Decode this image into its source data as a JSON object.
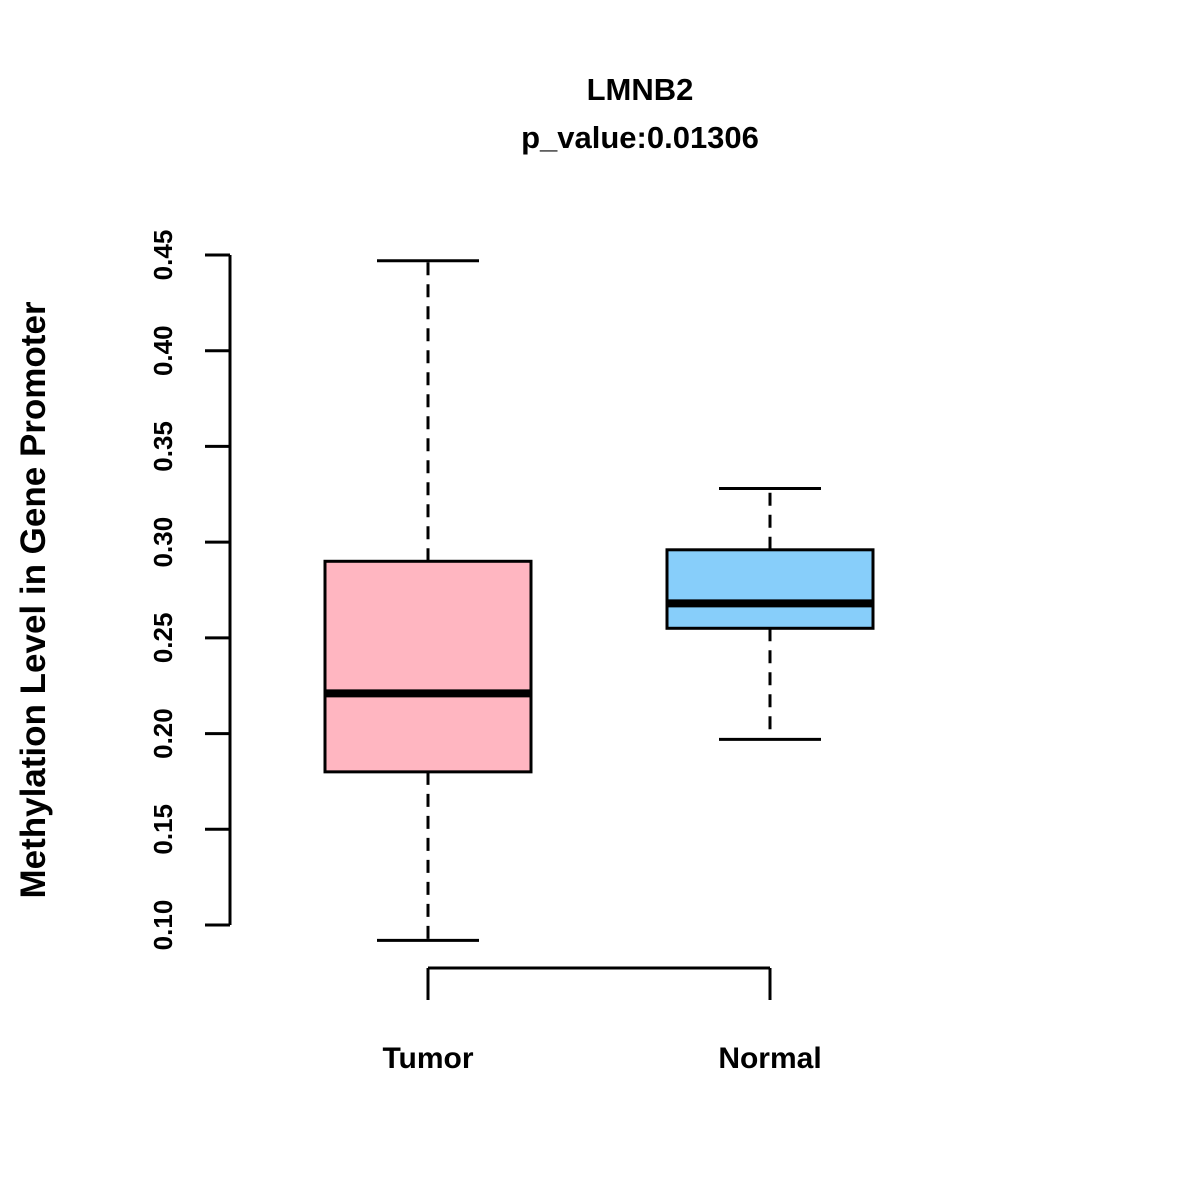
{
  "title": "LMNB2",
  "subtitle": "p_value:0.01306",
  "ylabel": "Methylation Level in Gene Promoter",
  "chart_data": {
    "type": "boxplot",
    "title": "LMNB2",
    "subtitle": "p_value:0.01306",
    "ylabel": "Methylation Level in Gene Promoter",
    "categories": [
      "Tumor",
      "Normal"
    ],
    "series": [
      {
        "name": "Tumor",
        "lower_whisker": 0.092,
        "q1": 0.18,
        "median": 0.221,
        "q3": 0.29,
        "upper_whisker": 0.447,
        "color": "#FFB6C1"
      },
      {
        "name": "Normal",
        "lower_whisker": 0.197,
        "q1": 0.255,
        "median": 0.268,
        "q3": 0.296,
        "upper_whisker": 0.328,
        "color": "#87CEFA"
      }
    ],
    "ylim": [
      0.1,
      0.45
    ],
    "yticks": [
      0.1,
      0.15,
      0.2,
      0.25,
      0.3,
      0.35,
      0.4,
      0.45
    ],
    "grid": false,
    "legend": "none"
  }
}
